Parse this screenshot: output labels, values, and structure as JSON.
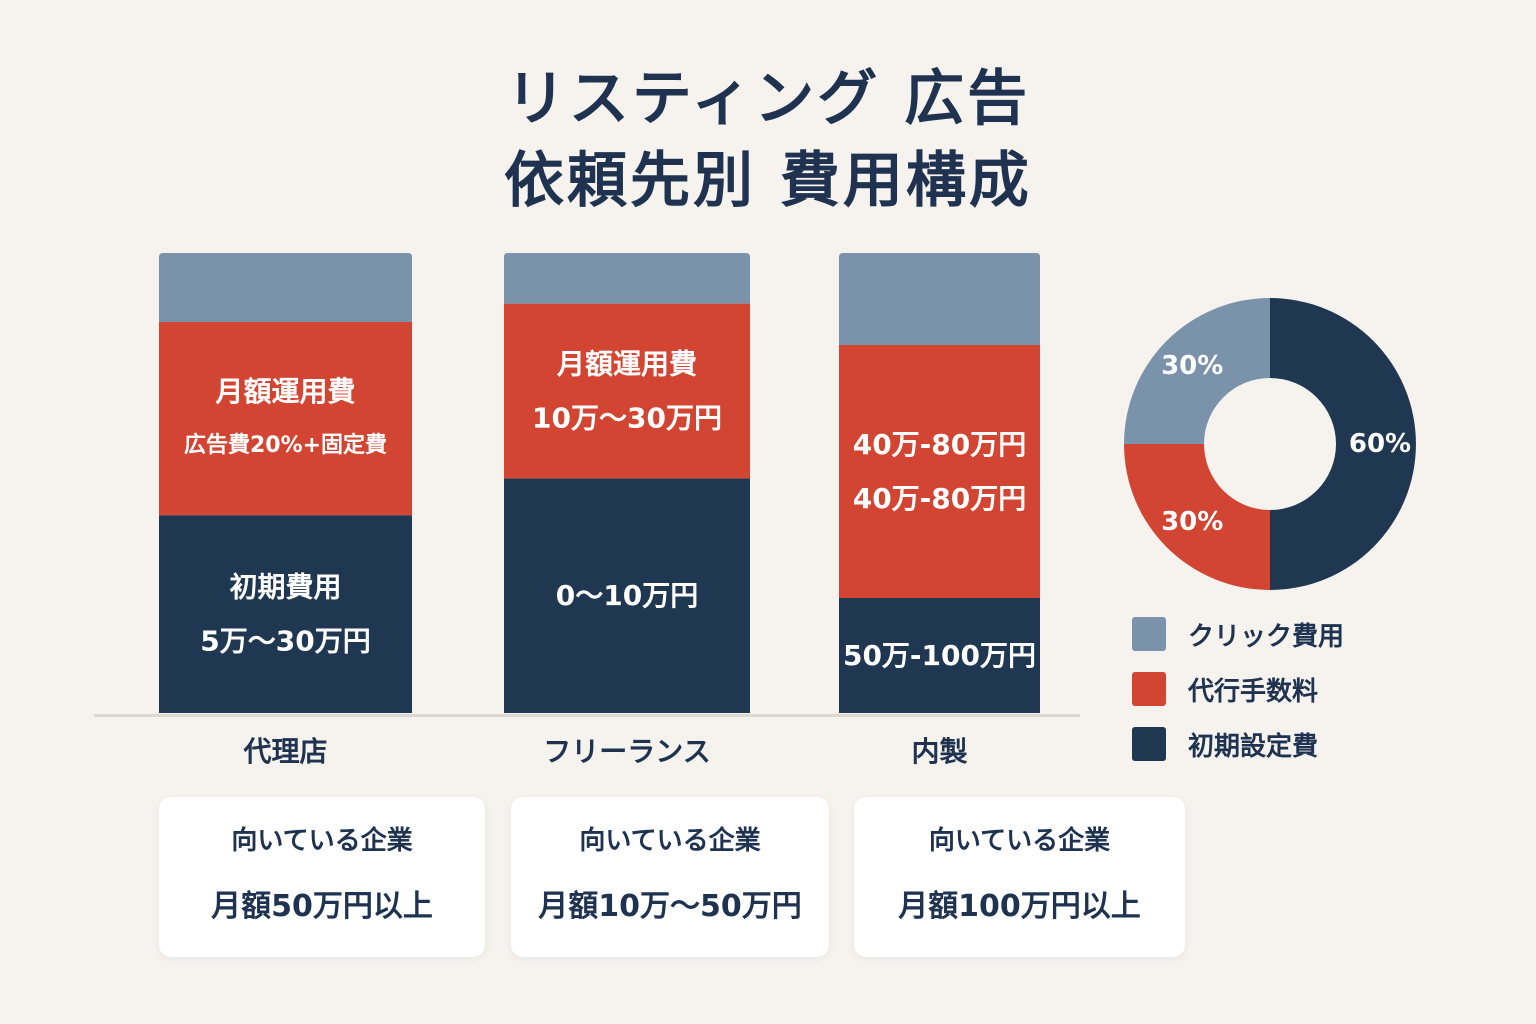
{
  "title": {
    "line1": "リスティング 広告",
    "line2": "依頼先別 費用構成"
  },
  "colors": {
    "click": "#7b93aa",
    "fee": "#d24532",
    "initial": "#1f3751",
    "text": "#1f3350",
    "background": "#f6f3ef"
  },
  "chart_data": [
    {
      "type": "bar",
      "stacked": true,
      "categories": [
        "代理店",
        "フリーランス",
        "内製"
      ],
      "series": [
        {
          "name": "初期費用",
          "key": "initial",
          "values": [
            43,
            51,
            25
          ]
        },
        {
          "name": "月額運用費",
          "key": "fee",
          "values": [
            42,
            38,
            55
          ]
        },
        {
          "name": "クリック費用",
          "key": "click",
          "values": [
            15,
            11,
            20
          ]
        }
      ],
      "segment_labels": [
        {
          "initial": [
            "初期費用",
            "5万〜30万円"
          ],
          "fee": [
            "月額運用費",
            "広告費20%+固定費"
          ],
          "click": []
        },
        {
          "initial": [
            "0〜10万円"
          ],
          "fee": [
            "月額運用費",
            "10万〜30万円"
          ],
          "click": []
        },
        {
          "initial": [
            "50万-100万円"
          ],
          "fee": [
            "40万-80万円",
            "40万-80万円"
          ],
          "click": []
        }
      ]
    },
    {
      "type": "pie",
      "donut": true,
      "slices": [
        {
          "name": "クリック費用",
          "key": "click",
          "value": 30,
          "label": "30%"
        },
        {
          "name": "代行手数料",
          "key": "fee",
          "value": 30,
          "label": "30%"
        },
        {
          "name": "初期設定費",
          "key": "initial",
          "value": 60,
          "label": "60%"
        }
      ]
    }
  ],
  "legend": [
    {
      "key": "click",
      "label": "クリック費用"
    },
    {
      "key": "fee",
      "label": "代行手数料"
    },
    {
      "key": "initial",
      "label": "初期設定費"
    }
  ],
  "cards": [
    {
      "heading": "向いている企業",
      "text": "月額50万円以上"
    },
    {
      "heading": "向いている企業",
      "text": "月額10万〜50万円"
    },
    {
      "heading": "向いている企業",
      "text": "月額100万円以上"
    }
  ]
}
